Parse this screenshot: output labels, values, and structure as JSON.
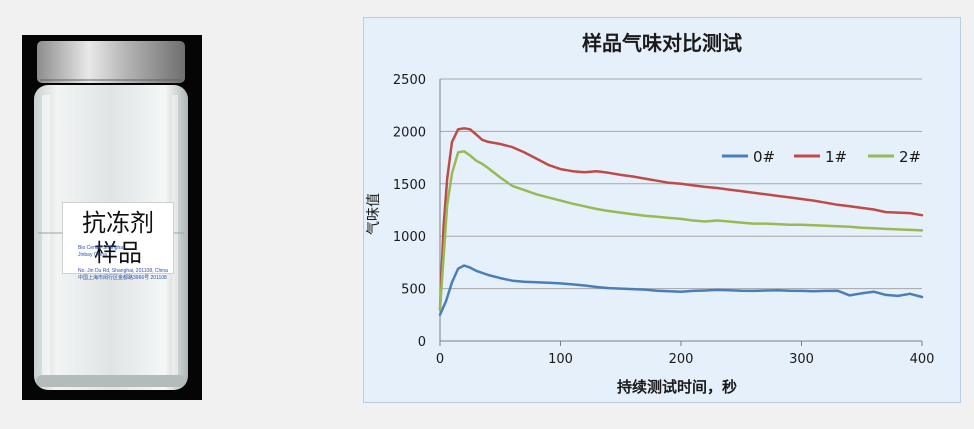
{
  "photo": {
    "label_lines": [
      "抗冻剂",
      "样品"
    ],
    "fine_print": [
      "Bio Centre Shanghai",
      "Jinbay China",
      "No. Jin Du Rd, Shanghai, 201108, China",
      "中国上海市闵行区金都路3966号 201108"
    ]
  },
  "chart_data": {
    "type": "line",
    "title": "样品气味对比测试",
    "xlabel": "持续测试时间，秒",
    "ylabel": "气味值",
    "xlim": [
      0,
      400
    ],
    "ylim": [
      0,
      2500
    ],
    "xticks": [
      0,
      100,
      200,
      300,
      400
    ],
    "yticks": [
      0,
      500,
      1000,
      1500,
      2000,
      2500
    ],
    "grid": "horizontal",
    "legend_position": "right",
    "series": [
      {
        "name": "0#",
        "color": "#4a7ebb",
        "x": [
          0,
          5,
          10,
          15,
          20,
          25,
          30,
          40,
          50,
          60,
          70,
          80,
          90,
          100,
          110,
          120,
          130,
          140,
          150,
          160,
          170,
          180,
          190,
          200,
          210,
          220,
          230,
          240,
          250,
          260,
          270,
          280,
          290,
          300,
          310,
          320,
          330,
          340,
          350,
          360,
          370,
          380,
          390,
          400
        ],
        "y": [
          250,
          380,
          560,
          690,
          720,
          700,
          670,
          630,
          600,
          575,
          565,
          560,
          555,
          550,
          540,
          530,
          515,
          505,
          500,
          495,
          490,
          480,
          475,
          470,
          478,
          482,
          488,
          485,
          480,
          478,
          482,
          485,
          480,
          478,
          475,
          478,
          480,
          435,
          455,
          470,
          440,
          430,
          450,
          420
        ]
      },
      {
        "name": "1#",
        "color": "#be4b48",
        "x": [
          0,
          3,
          6,
          10,
          15,
          20,
          25,
          30,
          35,
          40,
          50,
          60,
          70,
          80,
          90,
          100,
          110,
          120,
          130,
          140,
          150,
          160,
          170,
          180,
          190,
          200,
          210,
          220,
          230,
          240,
          250,
          260,
          270,
          280,
          290,
          300,
          310,
          320,
          330,
          340,
          350,
          360,
          370,
          380,
          390,
          400
        ],
        "y": [
          300,
          1100,
          1550,
          1900,
          2020,
          2030,
          2020,
          1970,
          1920,
          1900,
          1880,
          1850,
          1800,
          1740,
          1680,
          1640,
          1620,
          1610,
          1620,
          1605,
          1585,
          1570,
          1550,
          1530,
          1510,
          1500,
          1485,
          1470,
          1460,
          1445,
          1430,
          1415,
          1400,
          1385,
          1370,
          1355,
          1340,
          1320,
          1300,
          1285,
          1270,
          1255,
          1230,
          1225,
          1220,
          1200
        ]
      },
      {
        "name": "2#",
        "color": "#98b954",
        "x": [
          0,
          3,
          6,
          10,
          15,
          20,
          25,
          30,
          35,
          40,
          50,
          60,
          70,
          80,
          90,
          100,
          110,
          120,
          130,
          140,
          150,
          160,
          170,
          180,
          190,
          200,
          210,
          220,
          230,
          240,
          250,
          260,
          270,
          280,
          290,
          300,
          310,
          320,
          330,
          340,
          350,
          360,
          370,
          380,
          390,
          400
        ],
        "y": [
          300,
          800,
          1300,
          1600,
          1800,
          1810,
          1770,
          1720,
          1690,
          1650,
          1560,
          1480,
          1440,
          1400,
          1370,
          1340,
          1310,
          1285,
          1260,
          1240,
          1225,
          1210,
          1195,
          1185,
          1175,
          1165,
          1150,
          1140,
          1150,
          1140,
          1130,
          1120,
          1120,
          1115,
          1110,
          1110,
          1105,
          1100,
          1095,
          1090,
          1080,
          1075,
          1070,
          1065,
          1060,
          1055
        ]
      }
    ]
  }
}
